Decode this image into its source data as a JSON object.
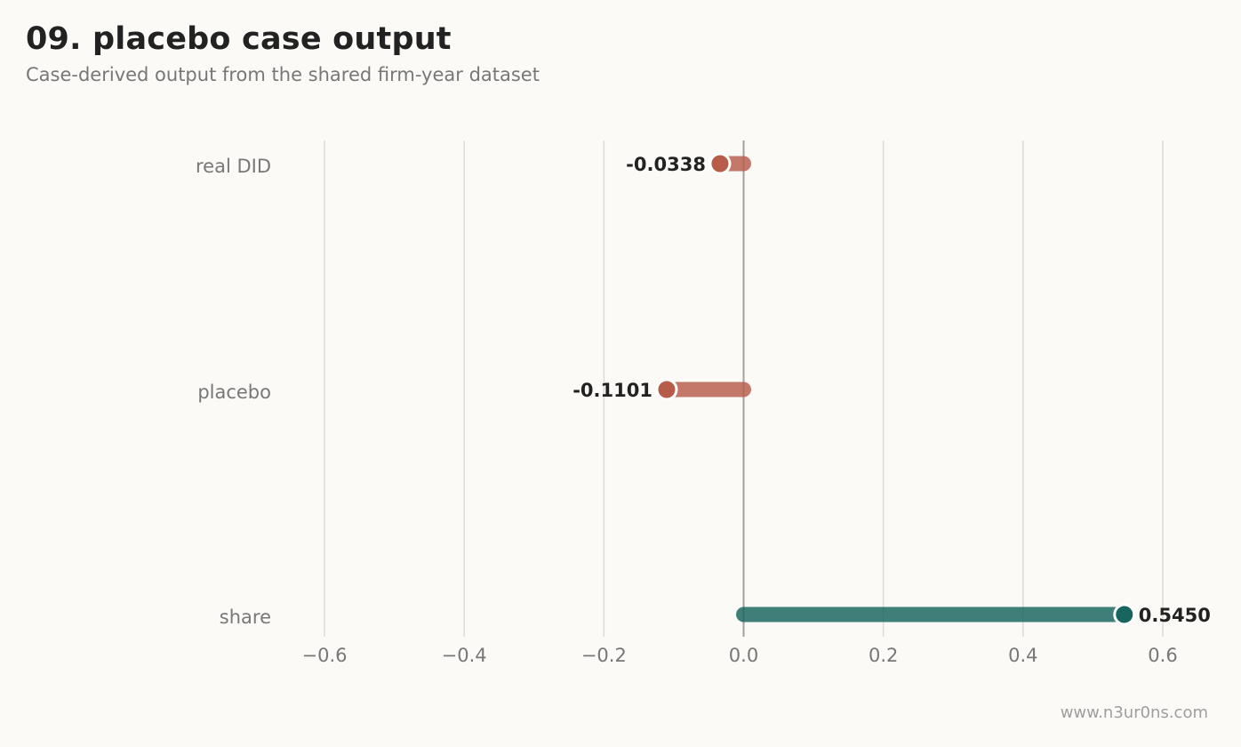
{
  "header": {
    "title": "09. placebo case output",
    "subtitle": "Case-derived output from the shared firm-year dataset"
  },
  "footer": {
    "watermark": "www.n3ur0ns.com"
  },
  "colors": {
    "negative": "#b85c4a",
    "positive": "#17655e",
    "grid": "#dcdcd6",
    "zero_line": "#a0a09c",
    "background": "#fbfaf7"
  },
  "chart_data": {
    "type": "lollipop",
    "orientation": "horizontal",
    "categories": [
      "real DID",
      "placebo",
      "share"
    ],
    "values": [
      -0.0338,
      -0.1101,
      0.545
    ],
    "value_labels": [
      "-0.0338",
      "-0.1101",
      "0.5450"
    ],
    "baseline": 0,
    "xlim": [
      -0.6,
      0.6
    ],
    "x_ticks": [
      -0.6,
      -0.4,
      -0.2,
      0.0,
      0.2,
      0.4,
      0.6
    ],
    "x_tick_labels": [
      "−0.6",
      "−0.4",
      "−0.2",
      "0.0",
      "0.2",
      "0.4",
      "0.6"
    ],
    "grid": "vertical",
    "xlabel": "",
    "ylabel": ""
  }
}
